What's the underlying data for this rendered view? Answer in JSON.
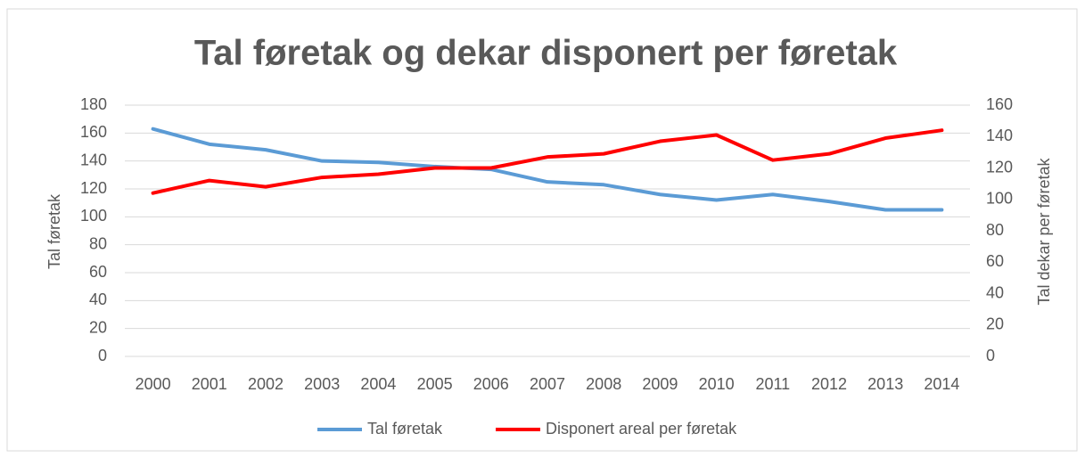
{
  "chart_data": {
    "type": "line",
    "title": "Tal føretak og dekar disponert per føretak",
    "categories": [
      "2000",
      "2001",
      "2002",
      "2003",
      "2004",
      "2005",
      "2006",
      "2007",
      "2008",
      "2009",
      "2010",
      "2011",
      "2012",
      "2013",
      "2014"
    ],
    "y_label": "Tal føretak",
    "y2_label": "Tal dekar per føretak",
    "ylim": [
      0,
      180
    ],
    "yticks": [
      0,
      20,
      40,
      60,
      80,
      100,
      120,
      140,
      160,
      180
    ],
    "y2lim": [
      0,
      160
    ],
    "y2ticks": [
      0,
      20,
      40,
      60,
      80,
      100,
      120,
      140,
      160
    ],
    "grid": true,
    "legend": "bottom",
    "series": [
      {
        "name": "Tal føretak",
        "color": "#5b9bd5",
        "values": [
          163,
          152,
          148,
          140,
          139,
          136,
          134,
          125,
          123,
          116,
          112,
          116,
          111,
          105,
          105
        ]
      },
      {
        "name": "Disponert areal per føretak",
        "color": "#ff0000",
        "axis": "y2",
        "values": [
          104,
          112,
          108,
          114,
          116,
          120,
          120,
          127,
          129,
          137,
          141,
          125,
          129,
          139,
          144
        ]
      }
    ]
  }
}
